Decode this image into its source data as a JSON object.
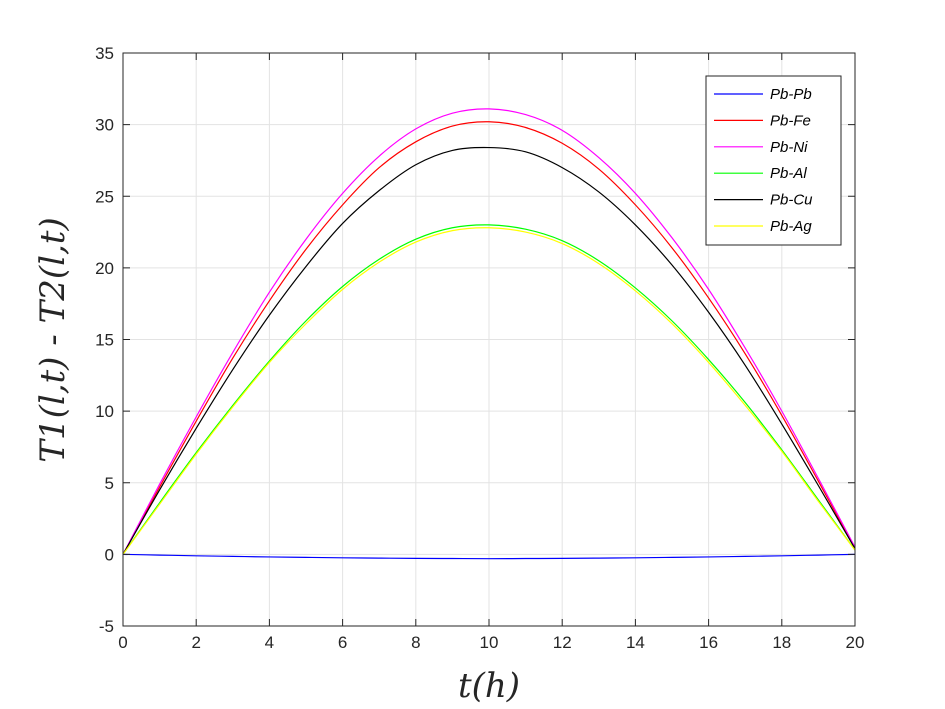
{
  "chart_data": {
    "type": "line",
    "title": "",
    "xlabel": "t(h)",
    "ylabel": "T1(l,t) - T2(l,t)",
    "xlim": [
      0,
      20
    ],
    "ylim": [
      -5,
      35
    ],
    "xticks": [
      0,
      2,
      4,
      6,
      8,
      10,
      12,
      14,
      16,
      18,
      20
    ],
    "yticks": [
      -5,
      0,
      5,
      10,
      15,
      20,
      25,
      30,
      35
    ],
    "xtick_labels": [
      "0",
      "2",
      "4",
      "6",
      "8",
      "10",
      "12",
      "14",
      "16",
      "18",
      "20"
    ],
    "ytick_labels": [
      "-5",
      "0",
      "5",
      "10",
      "15",
      "20",
      "25",
      "30",
      "35"
    ],
    "grid": true,
    "legend_position": "top-right",
    "x": [
      0,
      1,
      2,
      3,
      4,
      5,
      6,
      7,
      8,
      9,
      10,
      11,
      12,
      13,
      14,
      15,
      16,
      17,
      18,
      19,
      20
    ],
    "series": [
      {
        "name": "Pb-Pb",
        "color": "#0000ff",
        "values": [
          0,
          -0.05,
          -0.1,
          -0.14,
          -0.18,
          -0.21,
          -0.24,
          -0.26,
          -0.28,
          -0.29,
          -0.3,
          -0.29,
          -0.28,
          -0.26,
          -0.24,
          -0.21,
          -0.18,
          -0.14,
          -0.1,
          -0.05,
          0
        ]
      },
      {
        "name": "Pb-Fe",
        "color": "#ff0000",
        "values": [
          0,
          4.7,
          9.3,
          13.7,
          17.7,
          21.3,
          24.4,
          27.0,
          28.8,
          29.9,
          30.2,
          29.8,
          28.7,
          26.9,
          24.4,
          21.4,
          17.9,
          14.0,
          9.7,
          5.1,
          0.4
        ]
      },
      {
        "name": "Pb-Ni",
        "color": "#ff00ff",
        "values": [
          0,
          4.9,
          9.6,
          14.1,
          18.3,
          22.0,
          25.2,
          27.8,
          29.7,
          30.8,
          31.1,
          30.7,
          29.6,
          27.7,
          25.2,
          22.1,
          18.5,
          14.4,
          10.0,
          5.3,
          0.5
        ]
      },
      {
        "name": "Pb-Al",
        "color": "#00ff00",
        "values": [
          0,
          3.6,
          7.1,
          10.4,
          13.5,
          16.3,
          18.7,
          20.6,
          22.0,
          22.8,
          23.0,
          22.7,
          21.9,
          20.5,
          18.6,
          16.3,
          13.6,
          10.6,
          7.3,
          3.8,
          0.3
        ]
      },
      {
        "name": "Pb-Cu",
        "color": "#000000",
        "values": [
          0,
          4.5,
          8.8,
          12.9,
          16.7,
          20.1,
          23.1,
          25.4,
          27.2,
          28.2,
          28.4,
          28.1,
          27.0,
          25.3,
          23.0,
          20.2,
          16.9,
          13.2,
          9.1,
          4.8,
          0.4
        ]
      },
      {
        "name": "Pb-Ag",
        "color": "#ffff00",
        "values": [
          0,
          3.5,
          7.0,
          10.3,
          13.4,
          16.1,
          18.5,
          20.4,
          21.8,
          22.6,
          22.8,
          22.5,
          21.7,
          20.3,
          18.4,
          16.1,
          13.4,
          10.4,
          7.2,
          3.7,
          0.3
        ]
      }
    ]
  }
}
